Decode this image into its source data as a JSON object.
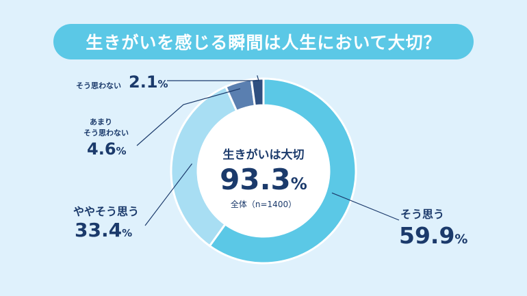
{
  "title": "生きがいを感じる瞬間は人生において大切？",
  "center": {
    "heading": "生きがいは大切",
    "value": "93.3",
    "unit": "%",
    "note": "全体（n=1400）"
  },
  "chart_data": {
    "type": "pie",
    "title": "生きがいを感じる瞬間は人生において大切？",
    "categories": [
      "そう思う",
      "ややそう思う",
      "あまりそう思わない",
      "そう思わない"
    ],
    "values": [
      59.9,
      33.4,
      4.6,
      2.1
    ],
    "colors": [
      "#5bc8e6",
      "#a8def3",
      "#5a7fb0",
      "#2f4f80"
    ],
    "labels": [
      {
        "lines": [
          "そう思う"
        ],
        "value": "59.9",
        "unit": "%"
      },
      {
        "lines": [
          "ややそう思う"
        ],
        "value": "33.4",
        "unit": "%"
      },
      {
        "lines": [
          "あまり",
          "そう思わない"
        ],
        "value": "4.6",
        "unit": "%"
      },
      {
        "lines": [
          "そう思わない"
        ],
        "value": "2.1",
        "unit": "%"
      }
    ]
  }
}
